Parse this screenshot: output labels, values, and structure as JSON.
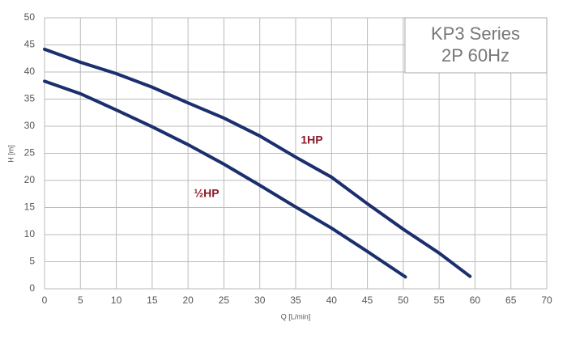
{
  "chart_data": {
    "type": "line",
    "title": "KP3 Series",
    "subtitle": "2P 60Hz",
    "x_label": "Q [L/min]",
    "y_label": "H [m]",
    "xlim": [
      0,
      70
    ],
    "ylim": [
      0,
      50
    ],
    "xticks": [
      0,
      5,
      10,
      15,
      20,
      25,
      30,
      35,
      40,
      45,
      50,
      55,
      60,
      65,
      70
    ],
    "yticks": [
      0,
      5,
      10,
      15,
      20,
      25,
      30,
      35,
      40,
      45,
      50
    ],
    "grid": true,
    "series": [
      {
        "name": "1HP",
        "color": "#1b2f6e",
        "label_color": "#8b1a2a",
        "x": [
          0,
          5,
          10,
          15,
          20,
          25,
          30,
          35,
          40,
          45,
          50,
          55,
          59.3
        ],
        "values": [
          44.2,
          41.8,
          39.7,
          37.2,
          34.3,
          31.5,
          28.2,
          24.3,
          20.6,
          15.7,
          11,
          6.6,
          2.3
        ]
      },
      {
        "name": "½HP",
        "color": "#1b2f6e",
        "label_color": "#8b1a2a",
        "x": [
          0,
          5,
          10,
          15,
          20,
          25,
          30,
          35,
          40,
          45,
          50.3
        ],
        "values": [
          38.3,
          36,
          33,
          29.9,
          26.6,
          23,
          19.1,
          15.1,
          11.2,
          6.9,
          2.2
        ]
      }
    ]
  }
}
